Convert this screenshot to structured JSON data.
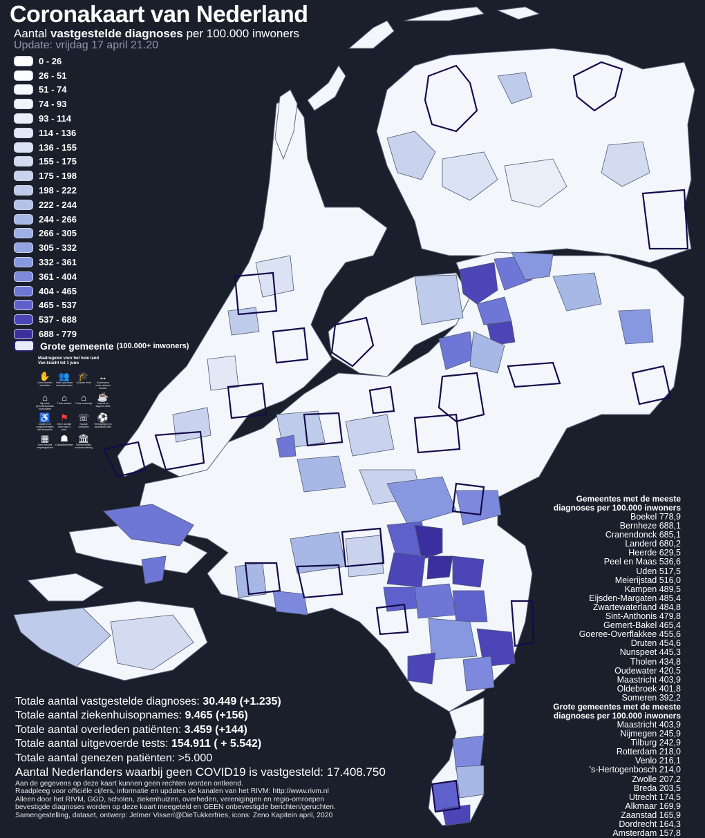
{
  "header": {
    "title": "Coronakaart van Nederland",
    "subtitle_pre": "Aantal ",
    "subtitle_bold": "vastgestelde diagnoses",
    "subtitle_post": " per 100.000 inwoners",
    "update": "Update: vrijdag 17 april 21.20"
  },
  "legend": {
    "classes": [
      {
        "label": "0 - 26",
        "color": "#ffffff"
      },
      {
        "label": "26 - 51",
        "color": "#fbfcfe"
      },
      {
        "label": "51 - 74",
        "color": "#f6f8fc"
      },
      {
        "label": "74 - 93",
        "color": "#f0f3fa"
      },
      {
        "label": "93 - 114",
        "color": "#e9eef8"
      },
      {
        "label": "114 - 136",
        "color": "#e2e8f5"
      },
      {
        "label": "136 - 155",
        "color": "#dae2f3"
      },
      {
        "label": "155 - 175",
        "color": "#d2dbf0"
      },
      {
        "label": "175 - 198",
        "color": "#c9d3ed"
      },
      {
        "label": "198 - 222",
        "color": "#becbea"
      },
      {
        "label": "222 - 244",
        "color": "#b3c2e8"
      },
      {
        "label": "244 - 266",
        "color": "#a8b8e6"
      },
      {
        "label": "266 - 305",
        "color": "#9dafe4"
      },
      {
        "label": "305 - 332",
        "color": "#92a4e2"
      },
      {
        "label": "332 - 361",
        "color": "#8797e0"
      },
      {
        "label": "361 - 404",
        "color": "#7c89dd"
      },
      {
        "label": "404 - 465",
        "color": "#6e76d6"
      },
      {
        "label": "465 - 537",
        "color": "#5e60cc"
      },
      {
        "label": "537 - 688",
        "color": "#4b45b8"
      },
      {
        "label": "688 - 779",
        "color": "#3a2f9e"
      }
    ],
    "big_label": "Grote gemeente",
    "big_note": "(100.000+ inwoners)"
  },
  "measures": {
    "title_line1": "Maatregelen voor het hele land",
    "title_line2": "Van kracht tot 1 juno",
    "icons": [
      {
        "name": "no-handshake-icon",
        "glyph": "✋",
        "red": true,
        "caption": "Geen handen schudden"
      },
      {
        "name": "no-gatherings-icon",
        "glyph": "👥",
        "red": true,
        "caption": "Geen openbare samenkomsten"
      },
      {
        "name": "schools-closed-icon",
        "glyph": "🎓",
        "red": true,
        "caption": "Scholen dicht"
      },
      {
        "name": "distance-icon",
        "glyph": "↔",
        "red": false,
        "caption": "Anderhalve meter afstand houden"
      },
      {
        "name": "stay-home-symptoms-icon",
        "glyph": "⌂",
        "red": false,
        "caption": "Bij milde gezondheidsklachten thuis blijven"
      },
      {
        "name": "work-from-home-icon",
        "glyph": "⌂",
        "red": false,
        "caption": "Thuis werken"
      },
      {
        "name": "study-home-icon",
        "glyph": "⌂",
        "red": false,
        "caption": "Thuis onderwijs"
      },
      {
        "name": "horeca-closed-icon",
        "glyph": "☕",
        "red": true,
        "caption": "Horeca en kappers dicht"
      },
      {
        "name": "elderly-care-icon",
        "glyph": "♿",
        "red": true,
        "caption": "Ouderen en zorgbehoeftigen niet bezoeken"
      },
      {
        "name": "no-events-icon",
        "glyph": "⚑",
        "red": true,
        "caption": "Geen sociale meer dan 3 pers."
      },
      {
        "name": "social-contact-icon",
        "glyph": "☏",
        "red": false,
        "caption": "Sociale contacten"
      },
      {
        "name": "clubs-closed-icon",
        "glyph": "⚽",
        "red": true,
        "caption": "Verenigingen en sportclubs dicht"
      },
      {
        "name": "care-homes-icon",
        "glyph": "▦",
        "red": false,
        "caption": "Geen bezoek verpleeghuizen"
      },
      {
        "name": "contact-professions-icon",
        "glyph": "☗",
        "red": false,
        "caption": "Contactberoepen"
      },
      {
        "name": "municipal-measures-icon",
        "glyph": "🏛",
        "red": false,
        "caption": "Gemeentelijke noodverordeningen"
      }
    ]
  },
  "totals": {
    "diagnoses_label": "Totale aantal vastgestelde diagnoses: ",
    "diagnoses_value": "30.449 (+1.235)",
    "hospital_label": "Totale aantal ziekenhuisopnames: ",
    "hospital_value": "9.465 (+156)",
    "deaths_label": "Totale aantal overleden patiënten: ",
    "deaths_value": "3.459 (+144)",
    "tests_label": "Totale aantal uitgevoerde tests: ",
    "tests_value": "154.911 ( + 5.542)",
    "recovered": "Totale aantal genezen patiënten: >5.000",
    "no_covid": "Aantal Nederlanders waarbij geen COVID19 is vastgesteld: 17.408.750"
  },
  "disclaimer": [
    "Aan de gegevens op deze kaart kunnen geen rechten worden ontleend.",
    "Raadpleeg voor officiële cijfers, informatie en updates de kanalen van het RIVM: http://www.rivm.nl",
    "Alleen door het RIVM, GGD, scholen, ziekenhuizen, overheden, verenigingen en regio-omroepen",
    "bevestigde diagnoses worden op deze kaart meegeteld en GEEN onbevestigde berichten/geruchten.",
    "Samengestelling, dataset, ontwerp: Jelmer Visser/@DieTukkerfries, icons: Zeno Kapitein april, 2020"
  ],
  "top_municipalities": {
    "heading_line1": "Gemeentes met de meeste",
    "heading_line2": "diagnoses per 100.000 inwoners",
    "items": [
      "Boekel 778,9",
      "Bernheze 688,1",
      "Cranendonck 685,1",
      "Landerd 680,2",
      "Heerde 629,5",
      "Peel en Maas 536,6",
      "Uden 517,5",
      "Meierijstad 516,0",
      "Kampen 489,5",
      "Eijsden-Margaten 485,4",
      "Zwartewaterland 484,8",
      "Sint-Anthonis 479,8",
      "Gemert-Bakel 465,4",
      "Goeree-Overflakkee 455,6",
      "Druten 454,6",
      "Nunspeet 445,3",
      "Tholen 434,8",
      "Oudewater 420,5",
      "Maastricht 403,9",
      "Oldebroek 401,8",
      "Someren 392,2"
    ]
  },
  "top_big_municipalities": {
    "heading_line1": "Grote gemeentes met de meeste",
    "heading_line2": "diagnoses per 100.000 inwoners",
    "items": [
      "Maastricht 403,9",
      "Nijmegen 245,9",
      "Tilburg 242,9",
      "Rotterdam 218,0",
      "Venlo 216,1",
      "'s-Hertogenbosch 214,0",
      "Zwolle 207,2",
      "Breda 203,5",
      "Utrecht 174,5",
      "Alkmaar 169,9",
      "Zaanstad 165,9",
      "Dordrecht 164,3",
      "Amsterdam 157,8"
    ]
  }
}
